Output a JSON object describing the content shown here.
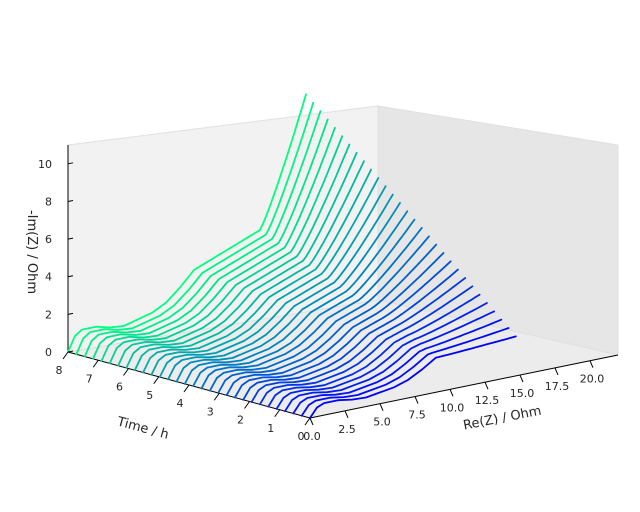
{
  "chart_data": {
    "type": "line",
    "projection": "3d",
    "title": "",
    "xlabel": "Re(Z) / Ohm",
    "ylabel": "Time / h",
    "zlabel": "-Im(Z) / Ohm",
    "xlim": [
      0,
      22
    ],
    "ylim": [
      0,
      8
    ],
    "zlim": [
      0,
      11
    ],
    "x_ticks": [
      "0.0",
      "2.5",
      "5.0",
      "7.5",
      "10.0",
      "12.5",
      "15.0",
      "17.5",
      "20.0"
    ],
    "y_ticks": [
      "0",
      "1",
      "2",
      "3",
      "4",
      "5",
      "6",
      "7",
      "8"
    ],
    "z_ticks": [
      "0",
      "2",
      "4",
      "6",
      "8",
      "10"
    ],
    "grid": false,
    "legend": "none",
    "colormap": "winter",
    "color_start": "#0000ff",
    "color_end": "#00ff80",
    "series_count": 30,
    "time_start": 0,
    "time_end": 8,
    "low_frequency_tail_start_re": [
      9.2,
      13.7
    ],
    "low_frequency_tail_end_re": [
      14.7,
      17.0
    ],
    "low_frequency_tail_end_im": [
      2.1,
      11.1
    ],
    "series_shape": {
      "re": [
        0.0,
        0.5,
        1.0,
        2.0,
        3.0,
        4.0,
        5.0,
        6.0,
        7.0,
        8.0,
        9.0
      ],
      "im": [
        0.0,
        0.6,
        0.8,
        0.8,
        0.65,
        0.6,
        0.75,
        0.9,
        1.2,
        1.7,
        2.3
      ]
    }
  }
}
